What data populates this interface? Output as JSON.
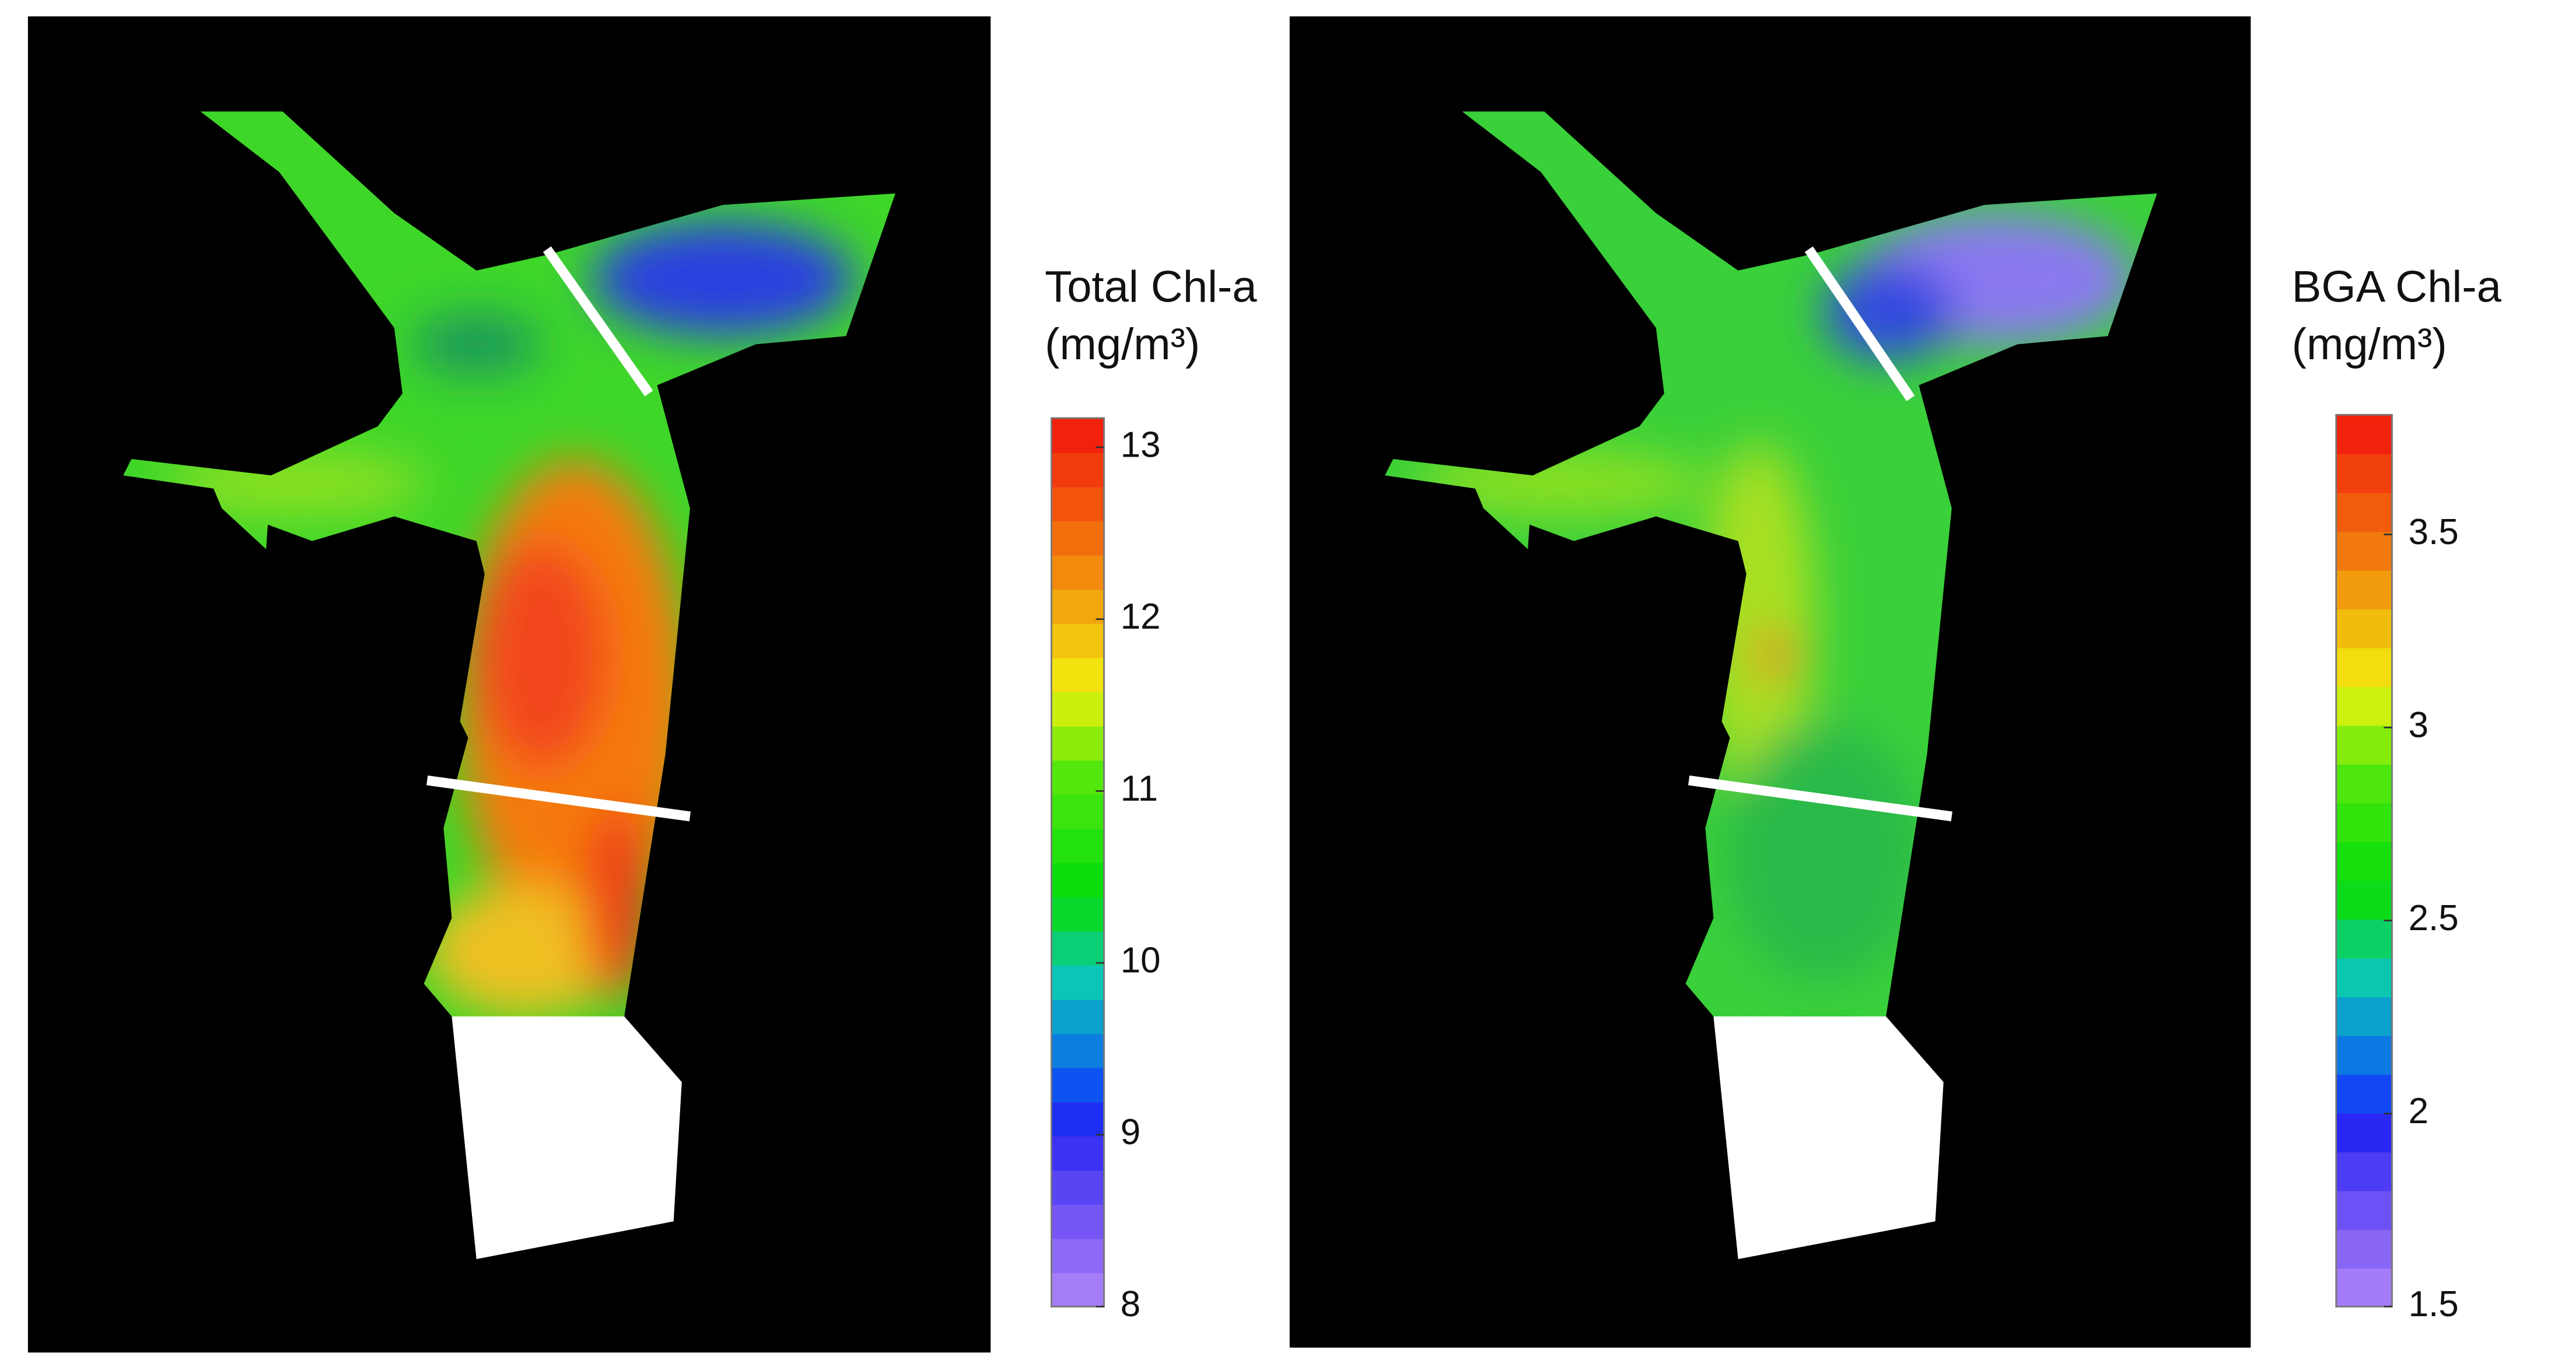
{
  "panels": [
    {
      "colorbar": {
        "title": "Total Chl-a",
        "unit": "(mg/m³)",
        "range": [
          8,
          13.17
        ],
        "ticks": [
          8,
          9,
          10,
          11,
          12,
          13
        ]
      }
    },
    {
      "colorbar": {
        "title": "BGA Chl-a",
        "unit": "(mg/m³)",
        "range": [
          1.5,
          3.81
        ],
        "ticks": [
          1.5,
          2,
          2.5,
          3,
          3.5
        ]
      }
    }
  ]
}
